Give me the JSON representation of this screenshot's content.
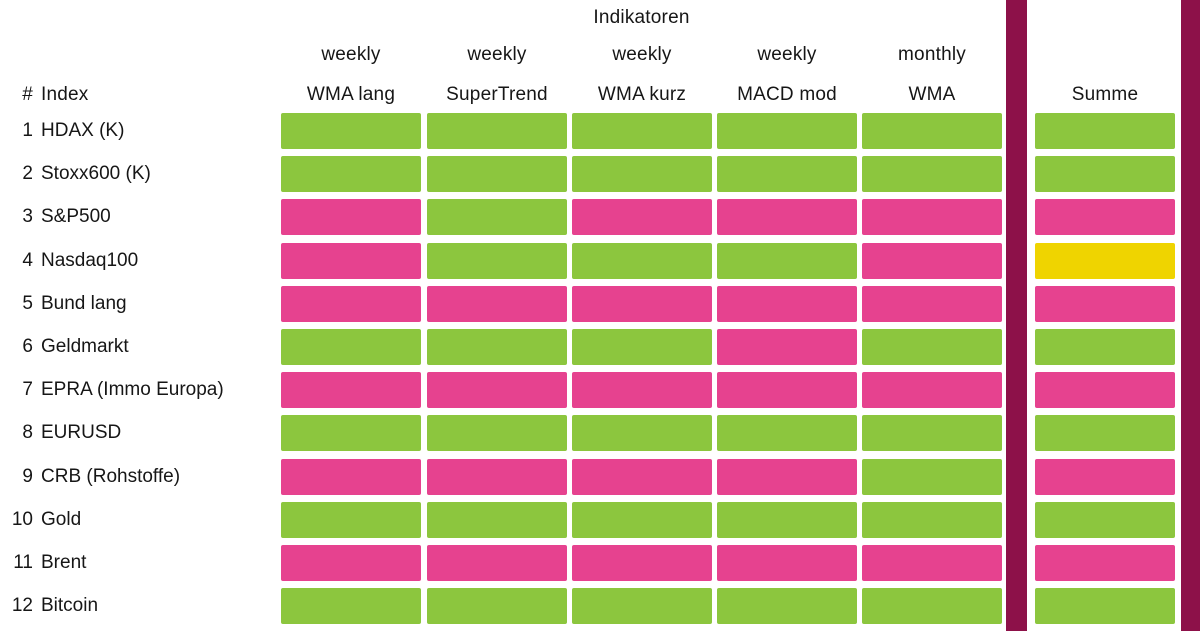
{
  "colors": {
    "green": "#8CC63E",
    "pink": "#E6428F",
    "yellow": "#EFD400",
    "separator": "#8D1149",
    "text": "#161616",
    "background": "#FFFFFF"
  },
  "chart_data": {
    "type": "heatmap",
    "title": "Indikatoren",
    "corner_header": {
      "hash": "#",
      "index": "Index"
    },
    "summe_header": "Summe",
    "column_headers": [
      {
        "period": "weekly",
        "name": "WMA lang"
      },
      {
        "period": "weekly",
        "name": "SuperTrend"
      },
      {
        "period": "weekly",
        "name": "WMA kurz"
      },
      {
        "period": "weekly",
        "name": "MACD mod"
      },
      {
        "period": "monthly",
        "name": "WMA"
      }
    ],
    "legend_note": "",
    "rows": [
      {
        "num": "1",
        "label": "HDAX (K)",
        "signals": [
          "green",
          "green",
          "green",
          "green",
          "green"
        ],
        "summe": "green"
      },
      {
        "num": "2",
        "label": "Stoxx600 (K)",
        "signals": [
          "green",
          "green",
          "green",
          "green",
          "green"
        ],
        "summe": "green"
      },
      {
        "num": "3",
        "label": "S&P500",
        "signals": [
          "pink",
          "green",
          "pink",
          "pink",
          "pink"
        ],
        "summe": "pink"
      },
      {
        "num": "4",
        "label": "Nasdaq100",
        "signals": [
          "pink",
          "green",
          "green",
          "green",
          "pink"
        ],
        "summe": "yellow"
      },
      {
        "num": "5",
        "label": "Bund lang",
        "signals": [
          "pink",
          "pink",
          "pink",
          "pink",
          "pink"
        ],
        "summe": "pink"
      },
      {
        "num": "6",
        "label": "Geldmarkt",
        "signals": [
          "green",
          "green",
          "green",
          "pink",
          "green"
        ],
        "summe": "green"
      },
      {
        "num": "7",
        "label": "EPRA (Immo Europa)",
        "signals": [
          "pink",
          "pink",
          "pink",
          "pink",
          "pink"
        ],
        "summe": "pink"
      },
      {
        "num": "8",
        "label": "EURUSD",
        "signals": [
          "green",
          "green",
          "green",
          "green",
          "green"
        ],
        "summe": "green"
      },
      {
        "num": "9",
        "label": "CRB (Rohstoffe)",
        "signals": [
          "pink",
          "pink",
          "pink",
          "pink",
          "green"
        ],
        "summe": "pink"
      },
      {
        "num": "10",
        "label": "Gold",
        "signals": [
          "green",
          "green",
          "green",
          "green",
          "green"
        ],
        "summe": "green"
      },
      {
        "num": "11",
        "label": "Brent",
        "signals": [
          "pink",
          "pink",
          "pink",
          "pink",
          "pink"
        ],
        "summe": "pink"
      },
      {
        "num": "12",
        "label": "Bitcoin",
        "signals": [
          "green",
          "green",
          "green",
          "green",
          "green"
        ],
        "summe": "green"
      }
    ]
  }
}
